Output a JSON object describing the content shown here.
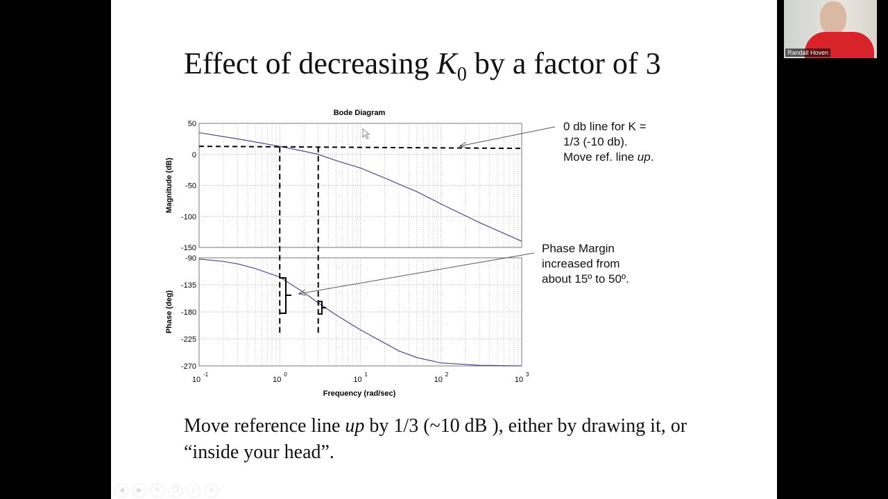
{
  "slide": {
    "title_prefix": "Effect of decreasing ",
    "title_var": "K",
    "title_sub": "0",
    "title_suffix": " by a factor of 3",
    "body_prefix": "Move reference line ",
    "body_em": "up",
    "body_suffix": " by 1/3 (~10 dB ), either by drawing it, or “inside your head”.",
    "note1_line1": "0 db line for K =",
    "note1_line2": "1/3 (-10 db).",
    "note1_line3_prefix": "Move ref. line ",
    "note1_line3_em": "up",
    "note1_line3_suffix": ".",
    "note2_line1": "Phase Margin",
    "note2_line2": "increased from",
    "note2_line3": "about 15º to 50º."
  },
  "video": {
    "participant_name": "Randall Hoven"
  },
  "controls": [
    "previous-icon",
    "play-icon",
    "pen-icon",
    "copy-icon",
    "zoom-icon",
    "menu-icon"
  ],
  "chart_data": {
    "type": "line",
    "title": "Bode Diagram",
    "xlabel": "Frequency  (rad/sec)",
    "xscale": "log",
    "xlim": [
      0.1,
      1000
    ],
    "xticks": [
      "10^-1",
      "10^0",
      "10^1",
      "10^2",
      "10^3"
    ],
    "grid": true,
    "panels": [
      {
        "name": "magnitude",
        "ylabel": "Magnitude (dB)",
        "ylim": [
          -150,
          50
        ],
        "yticks": [
          "50",
          "0",
          "-50",
          "-100",
          "-150"
        ],
        "x": [
          0.1,
          0.3,
          1,
          2,
          3,
          5,
          10,
          20,
          30,
          50,
          100,
          300,
          1000
        ],
        "y": [
          35,
          25,
          13,
          5,
          0,
          -10,
          -22,
          -38,
          -48,
          -60,
          -80,
          -110,
          -140
        ],
        "reference_line_db": 13
      },
      {
        "name": "phase",
        "ylabel": "Phase (deg)",
        "ylim": [
          -270,
          -90
        ],
        "yticks": [
          "-90",
          "-135",
          "-180",
          "-225",
          "-270"
        ],
        "x": [
          0.1,
          0.2,
          0.3,
          0.5,
          1,
          2,
          3,
          5,
          10,
          20,
          30,
          50,
          100,
          300,
          1000
        ],
        "y": [
          -92,
          -96,
          -100,
          -108,
          -122,
          -148,
          -165,
          -185,
          -210,
          -232,
          -245,
          -256,
          -265,
          -269,
          -270
        ]
      }
    ],
    "crossover_frequencies": [
      1,
      3
    ],
    "phase_margin_deg": {
      "before": 15,
      "after": 50
    },
    "line_color": "#4a4a8a"
  }
}
